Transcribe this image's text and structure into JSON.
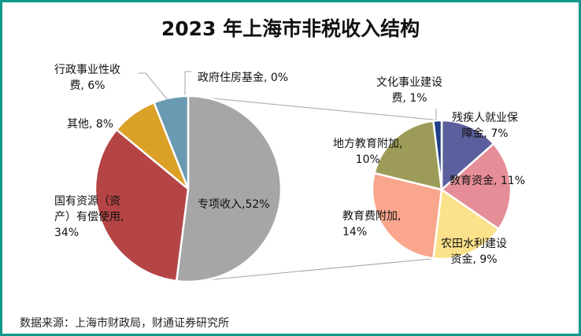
{
  "chart_data": {
    "type": "pie-of-pie",
    "title": "2023 年上海市非税收入结构",
    "main": [
      {
        "label": "专项收入",
        "value": 52,
        "text": "专项收入,52%",
        "color": "#a6a6a6"
      },
      {
        "label": "国有资源（资产）有偿使用",
        "value": 34,
        "text": "国有资源（资\n产）有偿使用,\n34%",
        "color": "#b54545"
      },
      {
        "label": "其他",
        "value": 8,
        "text": "其他, 8%",
        "color": "#dba026"
      },
      {
        "label": "行政事业性收费",
        "value": 6,
        "text": "行政事业性收\n费, 6%",
        "color": "#6a9ab2"
      },
      {
        "label": "政府住房基金",
        "value": 0,
        "text": "政府住房基金, 0%",
        "color": "#4e7ea0"
      }
    ],
    "secondary": [
      {
        "label": "残疾人就业保障金",
        "value": 7,
        "text": "残疾人就业保\n障金, 7%",
        "color": "#5c5f9e"
      },
      {
        "label": "教育资金",
        "value": 11,
        "text": "教育资金, 11%",
        "color": "#e68e98"
      },
      {
        "label": "农田水利建设资金",
        "value": 9,
        "text": "农田水利建设\n资金, 9%",
        "color": "#fbe18a"
      },
      {
        "label": "教育费附加",
        "value": 14,
        "text": "教育费附加,\n14%",
        "color": "#f9a68d"
      },
      {
        "label": "地方教育附加",
        "value": 10,
        "text": "地方教育附加,\n10%",
        "color": "#9c9c58"
      },
      {
        "label": "文化事业建设费",
        "value": 1,
        "text": "文化事业建设\n费, 1%",
        "color": "#1f3f86"
      }
    ]
  },
  "source": "数据来源：上海市财政局，财通证券研究所"
}
